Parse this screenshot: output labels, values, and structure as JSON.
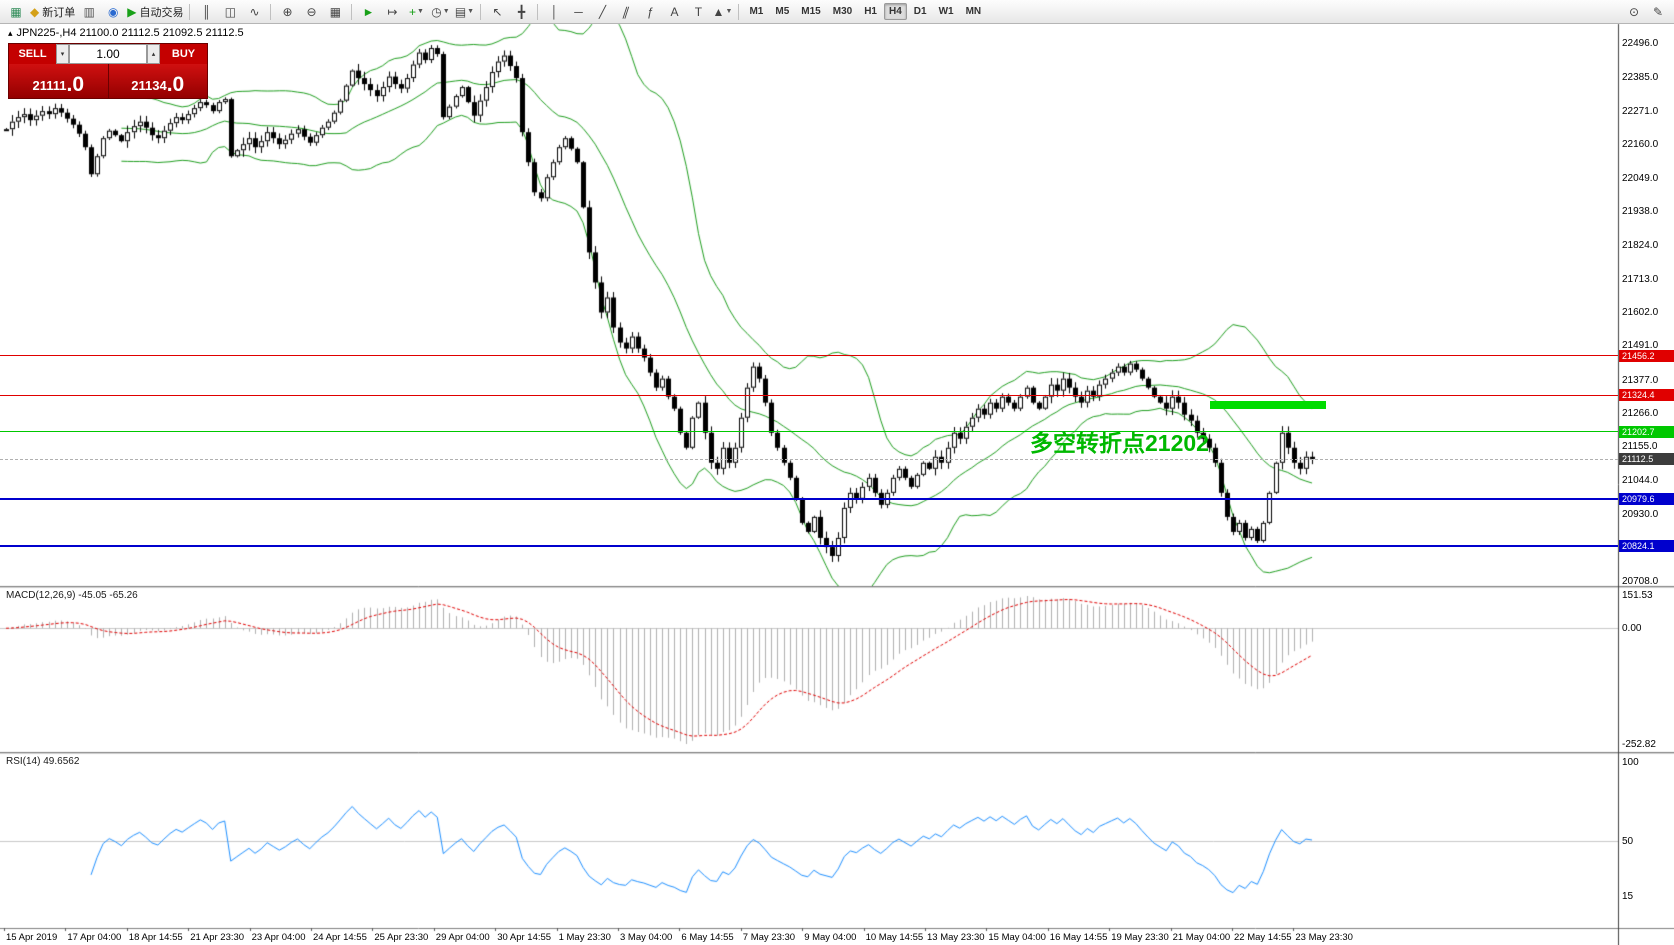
{
  "toolbar": {
    "items": [
      {
        "type": "icon",
        "name": "new-chart-icon",
        "glyph": "▦",
        "color": "#2e8b57"
      },
      {
        "type": "labeled",
        "name": "new-order-button",
        "glyph": "◆",
        "color": "#d4a017",
        "label": "新订单"
      },
      {
        "type": "icon",
        "name": "profiles-icon",
        "glyph": "▥",
        "color": "#555555"
      },
      {
        "type": "icon",
        "name": "market-watch-icon",
        "glyph": "◉",
        "color": "#2a6ad0"
      },
      {
        "type": "labeled",
        "name": "auto-trading-button",
        "glyph": "▶",
        "color": "#18a018",
        "label": "自动交易"
      },
      {
        "type": "sep"
      },
      {
        "type": "icon",
        "name": "bar-chart-icon",
        "glyph": "║",
        "color": "#444444"
      },
      {
        "type": "icon",
        "name": "candlestick-chart-icon",
        "glyph": "◫",
        "color": "#444444"
      },
      {
        "type": "icon",
        "name": "line-chart-icon",
        "glyph": "∿",
        "color": "#444444"
      },
      {
        "type": "sep"
      },
      {
        "type": "icon",
        "name": "zoom-in-icon",
        "glyph": "⊕",
        "color": "#444444"
      },
      {
        "type": "icon",
        "name": "zoom-out-icon",
        "glyph": "⊖",
        "color": "#444444"
      },
      {
        "type": "icon",
        "name": "tile-windows-icon",
        "glyph": "▦",
        "color": "#444444"
      },
      {
        "type": "sep"
      },
      {
        "type": "icon",
        "name": "auto-scroll-icon",
        "glyph": "►",
        "color": "#18a018"
      },
      {
        "type": "icon",
        "name": "chart-shift-icon",
        "glyph": "↦",
        "color": "#444444"
      },
      {
        "type": "icon",
        "name": "indicators-icon",
        "glyph": "+",
        "color": "#18a018",
        "caret": true
      },
      {
        "type": "icon",
        "name": "periods-icon",
        "glyph": "◷",
        "color": "#444444",
        "caret": true
      },
      {
        "type": "icon",
        "name": "templates-icon",
        "glyph": "▤",
        "color": "#444444",
        "caret": true
      },
      {
        "type": "sep"
      },
      {
        "type": "icon",
        "name": "cursor-icon",
        "glyph": "↖",
        "color": "#444444"
      },
      {
        "type": "icon",
        "name": "crosshair-icon",
        "glyph": "╋",
        "color": "#444444"
      },
      {
        "type": "sep"
      },
      {
        "type": "icon",
        "name": "vertical-line-icon",
        "glyph": "│",
        "color": "#444444"
      },
      {
        "type": "icon",
        "name": "horizontal-line-icon",
        "glyph": "─",
        "color": "#444444"
      },
      {
        "type": "icon",
        "name": "trendline-icon",
        "glyph": "╱",
        "color": "#444444"
      },
      {
        "type": "icon",
        "name": "channel-icon",
        "glyph": "∥",
        "color": "#444444"
      },
      {
        "type": "icon",
        "name": "fibonacci-icon",
        "glyph": "ƒ",
        "color": "#444444"
      },
      {
        "type": "icon",
        "name": "text-icon",
        "glyph": "A",
        "color": "#444444"
      },
      {
        "type": "icon",
        "name": "text-label-icon",
        "glyph": "T",
        "color": "#444444"
      },
      {
        "type": "icon",
        "name": "arrows-icon",
        "glyph": "▲",
        "color": "#444444",
        "caret": true
      },
      {
        "type": "sep"
      }
    ],
    "timeframes": {
      "items": [
        "M1",
        "M5",
        "M15",
        "M30",
        "H1",
        "H4",
        "D1",
        "W1",
        "MN"
      ],
      "active": "H4"
    },
    "right_items": [
      {
        "name": "search-icon",
        "glyph": "⊙"
      },
      {
        "name": "edit-window-icon",
        "glyph": "✎"
      }
    ]
  },
  "icons": {
    "oneclick_toggle": "▴",
    "spin_up": "▴",
    "spin_down": "▾",
    "toolbar_caret": "▼"
  },
  "chart": {
    "symbol_line": "JPN225-,H4  21100.0 21112.5 21092.5 21112.5",
    "annotation": "多空转折点21202",
    "price_axis_labels": [
      "22496.0",
      "22385.0",
      "22271.0",
      "22160.0",
      "22049.0",
      "21938.0",
      "21824.0",
      "21713.0",
      "21602.0",
      "21491.0",
      "21377.0",
      "21266.0",
      "21155.0",
      "21044.0",
      "20930.0",
      "20819.0",
      "20708.0"
    ],
    "hlines": [
      {
        "name": "resistance-line-21456",
        "price": 21456.2,
        "label": "21456.2",
        "color": "#e00000",
        "width": 1
      },
      {
        "name": "resistance-line-21324",
        "price": 21324.4,
        "label": "21324.4",
        "color": "#e00000",
        "width": 1
      },
      {
        "name": "pivot-line-21202",
        "price": 21202.7,
        "label": "21202.7",
        "color": "#00c800",
        "width": 1
      },
      {
        "name": "current-price-line",
        "price": 21112.5,
        "label": "21112.5",
        "color": "#b0b0b0",
        "tag_color": "#3c3c3c",
        "width": 1,
        "dash": true
      },
      {
        "name": "support-line-20979",
        "price": 20979.6,
        "label": "20979.6",
        "color": "#0000cd",
        "width": 2
      },
      {
        "name": "support-line-20824",
        "price": 20824.1,
        "label": "20824.1",
        "color": "#0000cd",
        "width": 2
      }
    ],
    "green_segment": {
      "price": 21293
    },
    "trade_panel": {
      "sell_label": "SELL",
      "buy_label": "BUY",
      "volume": "1.00",
      "sell_price": "21111",
      "sell_price_big": ".0",
      "buy_price": "21134",
      "buy_price_big": ".0"
    }
  },
  "macd": {
    "label": "MACD(12,26,9) -45.05 -65.26",
    "axis": [
      "151.53",
      "0.00",
      "-252.82"
    ]
  },
  "rsi": {
    "label": "RSI(14) 49.6562",
    "axis": [
      "100",
      "50",
      "15"
    ]
  },
  "time_axis": {
    "labels": [
      "15 Apr 2019",
      "17 Apr 04:00",
      "18 Apr 14:55",
      "21 Apr 23:30",
      "23 Apr 04:00",
      "24 Apr 14:55",
      "25 Apr 23:30",
      "29 Apr 04:00",
      "30 Apr 14:55",
      "1 May 23:30",
      "3 May 04:00",
      "6 May 14:55",
      "7 May 23:30",
      "9 May 04:00",
      "10 May 14:55",
      "13 May 23:30",
      "15 May 04:00",
      "16 May 14:55",
      "19 May 23:30",
      "21 May 04:00",
      "22 May 14:55",
      "23 May 23:30"
    ]
  },
  "chart_data": {
    "type": "candlestick",
    "symbol": "JPN225-",
    "timeframe": "H4",
    "current_bar": {
      "open": 21100.0,
      "high": 21112.5,
      "low": 21092.5,
      "close": 21112.5
    },
    "bid": 21111.0,
    "ask": 21134.0,
    "price_range": [
      20690,
      22560
    ],
    "hline_prices": [
      21456.2,
      21324.4,
      21202.7,
      20979.6,
      20824.1
    ],
    "overlays": {
      "bollinger_period": 20,
      "bollinger_dev": 2
    },
    "macd_params": [
      12,
      26,
      9
    ],
    "macd_values": [
      -45.05,
      -65.26
    ],
    "macd_scale": [
      151.53,
      -252.82
    ],
    "rsi_period": 14,
    "rsi_value": 49.6562,
    "closes": [
      22210,
      22235,
      22250,
      22260,
      22240,
      22255,
      22270,
      22260,
      22280,
      22265,
      22245,
      22225,
      22195,
      22150,
      22060,
      22120,
      22180,
      22205,
      22190,
      22170,
      22200,
      22220,
      22235,
      22215,
      22190,
      22180,
      22205,
      22230,
      22250,
      22240,
      22260,
      22280,
      22300,
      22290,
      22270,
      22300,
      22310,
      22120,
      22140,
      22160,
      22180,
      22150,
      22170,
      22200,
      22180,
      22160,
      22175,
      22195,
      22210,
      22185,
      22165,
      22190,
      22215,
      22235,
      22265,
      22305,
      22355,
      22405,
      22380,
      22360,
      22340,
      22320,
      22350,
      22385,
      22360,
      22345,
      22380,
      22425,
      22465,
      22440,
      22480,
      22460,
      22250,
      22285,
      22320,
      22350,
      22300,
      22255,
      22305,
      22350,
      22400,
      22435,
      22455,
      22420,
      22380,
      22200,
      22100,
      22000,
      21980,
      22050,
      22100,
      22150,
      22180,
      22145,
      22100,
      21950,
      21800,
      21700,
      21600,
      21650,
      21550,
      21500,
      21480,
      21520,
      21480,
      21450,
      21400,
      21350,
      21380,
      21320,
      21280,
      21200,
      21150,
      21250,
      21300,
      21200,
      21100,
      21080,
      21150,
      21100,
      21150,
      21250,
      21350,
      21420,
      21380,
      21300,
      21200,
      21150,
      21100,
      21050,
      20980,
      20900,
      20870,
      20920,
      20850,
      20820,
      20790,
      20850,
      20950,
      21000,
      20980,
      21020,
      21050,
      21000,
      20960,
      21000,
      21050,
      21080,
      21050,
      21020,
      21060,
      21100,
      21080,
      21120,
      21100,
      21150,
      21200,
      21180,
      21220,
      21250,
      21280,
      21260,
      21300,
      21280,
      21320,
      21300,
      21280,
      21320,
      21350,
      21300,
      21280,
      21320,
      21360,
      21340,
      21380,
      21350,
      21320,
      21300,
      21340,
      21320,
      21360,
      21380,
      21400,
      21420,
      21400,
      21430,
      21410,
      21380,
      21350,
      21320,
      21300,
      21280,
      21320,
      21300,
      21260,
      21240,
      21200,
      21180,
      21150,
      21100,
      21000,
      20920,
      20870,
      20900,
      20850,
      20880,
      20840,
      20900,
      21000,
      21100,
      21200,
      21150,
      21100,
      21080,
      21120,
      21112.5
    ]
  }
}
